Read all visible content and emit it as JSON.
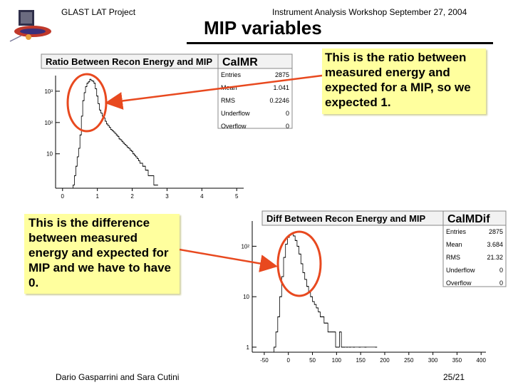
{
  "header": {
    "project": "GLAST LAT Project",
    "workshop": "Instrument Analysis Workshop September 27, 2004",
    "title": "MIP variables"
  },
  "callouts": {
    "top_right": "This is the ratio between measured energy and expected for a MIP, so we expected 1.",
    "left": "This is the difference between measured energy and expected for MIP and we have to have 0."
  },
  "footer": {
    "authors": "Dario Gasparrini and Sara Cutini",
    "page": "25/21"
  },
  "colors": {
    "callout_bg": "#ffff9e",
    "highlight": "#e8491f",
    "arrow": "#e8491f"
  },
  "chart_data": [
    {
      "type": "bar",
      "title": "Ratio Between Recon Energy and MIP",
      "stats": {
        "name": "CalMR",
        "rows": [
          {
            "label": "Entries",
            "value": "2875"
          },
          {
            "label": "Mean",
            "value": "1.041"
          },
          {
            "label": "RMS",
            "value": "0.2246"
          },
          {
            "label": "Underflow",
            "value": "0"
          },
          {
            "label": "Overflow",
            "value": "0"
          }
        ]
      },
      "xlim": [
        -0.2,
        5.2
      ],
      "xticks": [
        "0",
        "1",
        "2",
        "3",
        "4",
        "5"
      ],
      "y_log": true,
      "ytick_labels": [
        "10³",
        "10²",
        "10"
      ],
      "bins": [
        [
          0.3,
          1
        ],
        [
          0.34,
          2
        ],
        [
          0.38,
          4
        ],
        [
          0.42,
          8
        ],
        [
          0.46,
          15
        ],
        [
          0.5,
          40
        ],
        [
          0.54,
          160
        ],
        [
          0.58,
          500
        ],
        [
          0.62,
          900
        ],
        [
          0.66,
          1400
        ],
        [
          0.7,
          1800
        ],
        [
          0.74,
          2000
        ],
        [
          0.78,
          2400
        ],
        [
          0.82,
          2200
        ],
        [
          0.86,
          2100
        ],
        [
          0.9,
          1800
        ],
        [
          0.94,
          1200
        ],
        [
          0.98,
          700
        ],
        [
          1.02,
          400
        ],
        [
          1.06,
          250
        ],
        [
          1.1,
          200
        ],
        [
          1.14,
          160
        ],
        [
          1.18,
          140
        ],
        [
          1.22,
          110
        ],
        [
          1.26,
          90
        ],
        [
          1.3,
          80
        ],
        [
          1.34,
          70
        ],
        [
          1.38,
          60
        ],
        [
          1.42,
          55
        ],
        [
          1.46,
          50
        ],
        [
          1.5,
          45
        ],
        [
          1.54,
          40
        ],
        [
          1.58,
          36
        ],
        [
          1.62,
          30
        ],
        [
          1.66,
          28
        ],
        [
          1.7,
          25
        ],
        [
          1.74,
          22
        ],
        [
          1.78,
          20
        ],
        [
          1.82,
          18
        ],
        [
          1.86,
          16
        ],
        [
          1.9,
          15
        ],
        [
          1.94,
          13
        ],
        [
          1.98,
          12
        ],
        [
          2.02,
          10
        ],
        [
          2.06,
          9
        ],
        [
          2.1,
          8
        ],
        [
          2.14,
          7
        ],
        [
          2.18,
          6
        ],
        [
          2.22,
          5
        ],
        [
          2.26,
          5
        ],
        [
          2.3,
          4
        ],
        [
          2.34,
          4
        ],
        [
          2.38,
          3
        ],
        [
          2.42,
          3
        ],
        [
          2.46,
          2
        ],
        [
          2.5,
          2
        ],
        [
          2.54,
          2
        ],
        [
          2.58,
          2
        ],
        [
          2.62,
          1
        ],
        [
          2.66,
          1
        ],
        [
          2.7,
          1
        ]
      ]
    },
    {
      "type": "bar",
      "title": "Diff Between Recon Energy and MIP",
      "stats": {
        "name": "CalMDif",
        "rows": [
          {
            "label": "Entries",
            "value": "2875"
          },
          {
            "label": "Mean",
            "value": "3.684"
          },
          {
            "label": "RMS",
            "value": "21.32"
          },
          {
            "label": "Underflow",
            "value": "0"
          },
          {
            "label": "Overflow",
            "value": "0"
          }
        ]
      },
      "xlim": [
        -75,
        410
      ],
      "xticks": [
        "-50",
        "0",
        "50",
        "100",
        "150",
        "200",
        "250",
        "300",
        "350",
        "400"
      ],
      "y_log": true,
      "ytick_labels": [
        "10²",
        "10",
        "1"
      ],
      "bins": [
        [
          -30,
          1
        ],
        [
          -26,
          2
        ],
        [
          -22,
          4
        ],
        [
          -18,
          10
        ],
        [
          -14,
          25
        ],
        [
          -10,
          60
        ],
        [
          -6,
          110
        ],
        [
          -2,
          150
        ],
        [
          2,
          170
        ],
        [
          6,
          180
        ],
        [
          10,
          160
        ],
        [
          14,
          130
        ],
        [
          18,
          100
        ],
        [
          22,
          70
        ],
        [
          26,
          45
        ],
        [
          30,
          30
        ],
        [
          34,
          22
        ],
        [
          38,
          16
        ],
        [
          42,
          12
        ],
        [
          46,
          10
        ],
        [
          50,
          8
        ],
        [
          54,
          7
        ],
        [
          58,
          6
        ],
        [
          62,
          5
        ],
        [
          66,
          4
        ],
        [
          70,
          4
        ],
        [
          74,
          3
        ],
        [
          78,
          3
        ],
        [
          82,
          2
        ],
        [
          86,
          2
        ],
        [
          90,
          2
        ],
        [
          94,
          2
        ],
        [
          98,
          1
        ],
        [
          102,
          1
        ],
        [
          106,
          2
        ],
        [
          110,
          1
        ],
        [
          114,
          1
        ],
        [
          120,
          1
        ],
        [
          126,
          1
        ],
        [
          134,
          1
        ],
        [
          146,
          1
        ],
        [
          158,
          1
        ],
        [
          180,
          1
        ]
      ]
    }
  ]
}
